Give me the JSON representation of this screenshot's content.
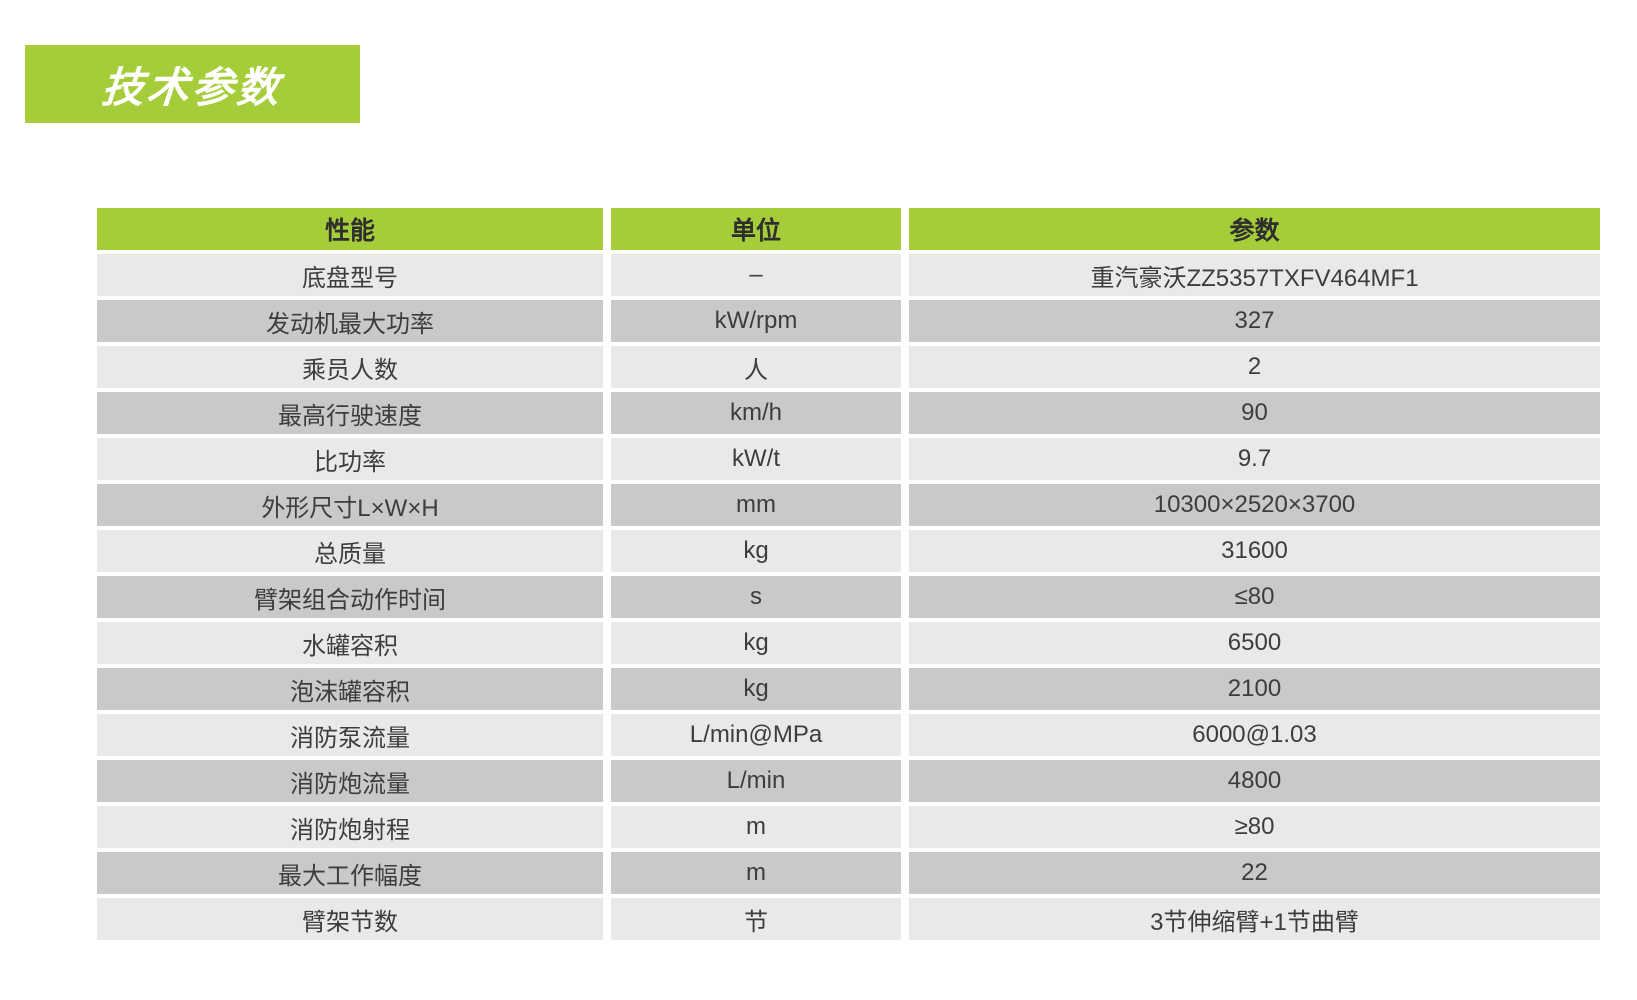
{
  "title_banner": {
    "label": "技术参数"
  },
  "colors": {
    "accent_green": "#a5cd39",
    "row_light": "#e9e9e9",
    "row_dark": "#c9c9c9",
    "cell_text": "#3d3d3d",
    "header_text": "#2e2e2e",
    "banner_text": "#ffffff"
  },
  "table": {
    "headers": [
      "性能",
      "单位",
      "参数"
    ],
    "rows": [
      [
        "底盘型号",
        "–",
        "重汽豪沃ZZ5357TXFV464MF1"
      ],
      [
        "发动机最大功率",
        "kW/rpm",
        "327"
      ],
      [
        "乘员人数",
        "人",
        "2"
      ],
      [
        "最高行驶速度",
        "km/h",
        "90"
      ],
      [
        "比功率",
        "kW/t",
        "9.7"
      ],
      [
        "外形尺寸L×W×H",
        "mm",
        "10300×2520×3700"
      ],
      [
        "总质量",
        "kg",
        "31600"
      ],
      [
        "臂架组合动作时间",
        "s",
        "≤80"
      ],
      [
        "水罐容积",
        "kg",
        "6500"
      ],
      [
        "泡沫罐容积",
        "kg",
        "2100"
      ],
      [
        "消防泵流量",
        "L/min@MPa",
        "6000@1.03"
      ],
      [
        "消防炮流量",
        "L/min",
        "4800"
      ],
      [
        "消防炮射程",
        "m",
        "≥80"
      ],
      [
        "最大工作幅度",
        "m",
        "22"
      ],
      [
        "臂架节数",
        "节",
        "3节伸缩臂+1节曲臂"
      ]
    ]
  }
}
